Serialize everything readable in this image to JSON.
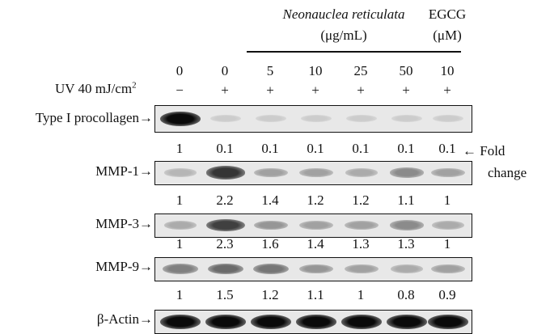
{
  "header": {
    "extract_name": "Neonauclea reticulata",
    "extract_unit": "(μg/mL)",
    "control_name": "EGCG",
    "control_unit": "(μM)"
  },
  "doses": [
    "0",
    "0",
    "5",
    "10",
    "25",
    "50",
    "10"
  ],
  "uv": {
    "label": "UV 40 mJ/cm",
    "sup": "2",
    "signs": [
      "−",
      "+",
      "+",
      "+",
      "+",
      "+",
      "+"
    ]
  },
  "arrow_glyph": "→",
  "fold_change": {
    "arrow": "←",
    "line1": "Fold",
    "line2": "change"
  },
  "blots": [
    {
      "label": "Type I procollagen",
      "band_intensity": [
        1.0,
        0.1,
        0.1,
        0.1,
        0.1,
        0.1,
        0.1
      ],
      "values": [
        "1",
        "0.1",
        "0.1",
        "0.1",
        "0.1",
        "0.1",
        "0.1"
      ]
    },
    {
      "label": "MMP-1",
      "band_intensity": [
        0.2,
        0.8,
        0.3,
        0.3,
        0.25,
        0.4,
        0.3
      ],
      "values": [
        "1",
        "2.2",
        "1.4",
        "1.2",
        "1.2",
        "1.1",
        "1"
      ]
    },
    {
      "label": "MMP-3",
      "band_intensity": [
        0.25,
        0.75,
        0.35,
        0.3,
        0.3,
        0.4,
        0.25
      ],
      "values": [
        "1",
        "2.3",
        "1.6",
        "1.4",
        "1.3",
        "1.3",
        "1"
      ]
    },
    {
      "label": "MMP-9",
      "band_intensity": [
        0.45,
        0.55,
        0.5,
        0.35,
        0.3,
        0.25,
        0.3
      ],
      "values": [
        "1",
        "1.5",
        "1.2",
        "1.1",
        "1",
        "0.8",
        "0.9"
      ]
    },
    {
      "label": "β-Actin",
      "band_intensity": [
        1.0,
        1.0,
        1.0,
        1.0,
        1.0,
        1.0,
        1.0
      ],
      "values": []
    }
  ]
}
